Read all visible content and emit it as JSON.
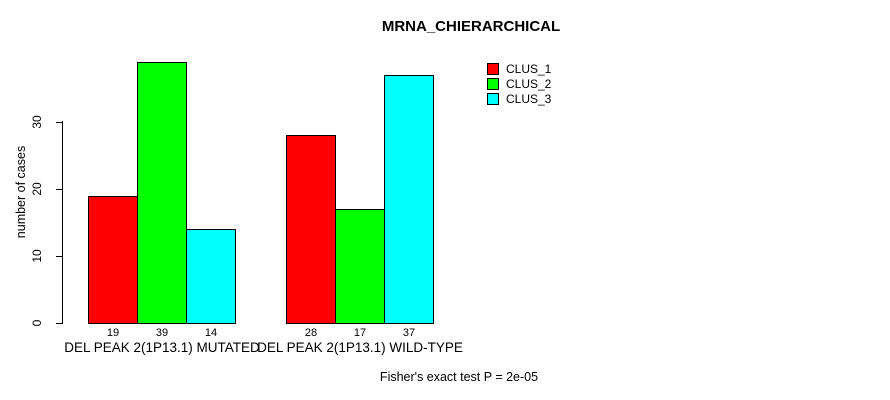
{
  "title": "MRNA_CHIERARCHICAL",
  "footer_note": "Fisher's exact test P = 2e-05",
  "colors": {
    "clus_1": "#ff0000",
    "clus_2": "#00ff00",
    "clus_3": "#00ffff",
    "axis": "#000000",
    "background": "#ffffff"
  },
  "chart_data": {
    "type": "bar",
    "title": "MRNA_CHIERARCHICAL",
    "xlabel": "",
    "ylabel": "number of cases",
    "categories": [
      "DEL PEAK 2(1P13.1) MUTATED",
      "DEL PEAK 2(1P13.1) WILD-TYPE"
    ],
    "series": [
      {
        "name": "CLUS_1",
        "color": "#ff0000",
        "values": [
          19,
          28
        ]
      },
      {
        "name": "CLUS_2",
        "color": "#00ff00",
        "values": [
          39,
          17
        ]
      },
      {
        "name": "CLUS_3",
        "color": "#00ffff",
        "values": [
          14,
          37
        ]
      }
    ],
    "bar_value_labels": [
      [
        19,
        39,
        14
      ],
      [
        28,
        17,
        37
      ]
    ],
    "yticks": [
      0,
      10,
      20,
      30
    ],
    "ylim": [
      0,
      39
    ],
    "grid": false,
    "legend_position": "top-right",
    "legend_entries": [
      "CLUS_1",
      "CLUS_2",
      "CLUS_3"
    ],
    "annotation": "Fisher's exact test P = 2e-05"
  }
}
